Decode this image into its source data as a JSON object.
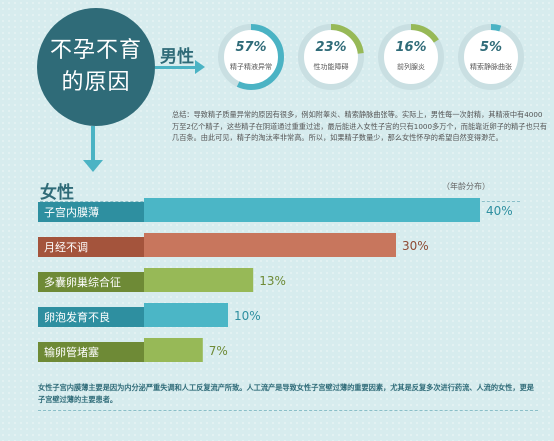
{
  "title": {
    "line1": "不孕不育",
    "line2": "的原因"
  },
  "male": {
    "label": "男性",
    "items": [
      {
        "pct": "57%",
        "value": 57,
        "label": "精子精液异常"
      },
      {
        "pct": "23%",
        "value": 23,
        "label": "性功能障碍"
      },
      {
        "pct": "16%",
        "value": 16,
        "label": "前列腺炎"
      },
      {
        "pct": "5%",
        "value": 5,
        "label": "精索静脉曲张"
      }
    ]
  },
  "summary": "总结：导致精子质量异常的原因有很多，例如附睾炎、精索静脉曲张等。实际上，男性每一次射精，其精液中有4000万至2亿个精子，这些精子在阴道通过重重过滤，最后能进入女性子宫的只有1000多万个，而能靠近卵子的精子也只有几百条。由此可见，精子的淘汰率非常高。所以，如果精子数量少，那么女性怀孕的希望自然变得渺茫。",
  "female": {
    "label": "女性",
    "annual_note": "（年龄分布）"
  },
  "chart_data": {
    "type": "bar",
    "categories": [
      "子宫内膜薄",
      "月经不调",
      "多囊卵巢综合征",
      "卵泡发育不良",
      "输卵管堵塞"
    ],
    "values": [
      40,
      30,
      13,
      10,
      7
    ],
    "labels": [
      "40%",
      "30%",
      "13%",
      "10%",
      "7%"
    ],
    "colors": [
      "#4bb6c6",
      "#c8765d",
      "#97b957",
      "#4bb6c6",
      "#97b957"
    ],
    "label_colors": [
      "#2e8fa0",
      "#8e4b34",
      "#6e8a36",
      "#2e8fa0",
      "#6e8a36"
    ],
    "xlim": [
      0,
      40
    ]
  },
  "colors": {
    "teal": "#2f6b78",
    "ring": "#4bb3c4",
    "ring_bg": "#ffffff"
  },
  "note": "女性子宫内膜薄主要是因为内分泌严重失调和人工反复流产所致。人工流产是导致女性子宫壁过薄的重要因素，尤其是反复多次进行药流、人流的女性，更是子宫壁过薄的主要患者。"
}
